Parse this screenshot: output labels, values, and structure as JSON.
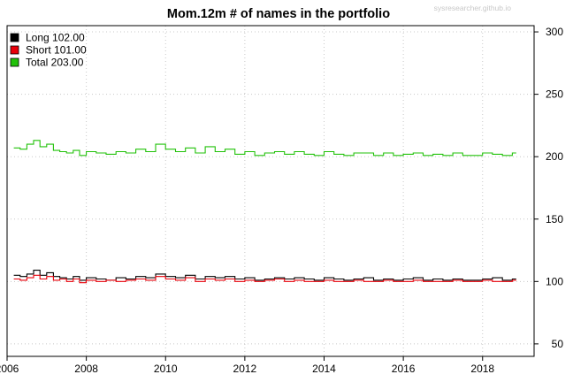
{
  "chart_data": {
    "type": "line",
    "title": "Mom.12m # of names in the portfolio",
    "watermark": "sysresearcher.github.io",
    "xlabel": "",
    "ylabel": "",
    "xlim": [
      2006.0,
      2019.3
    ],
    "ylim": [
      40,
      305
    ],
    "x_ticks": [
      2006,
      2008,
      2010,
      2012,
      2014,
      2016,
      2018
    ],
    "y_ticks": [
      50,
      100,
      150,
      200,
      250,
      300
    ],
    "y_axis_side": "right",
    "grid": true,
    "legend_position": "top-left",
    "step": true,
    "series": [
      {
        "name": "Long 102.00",
        "color": "#000000",
        "x": [
          2006.17,
          2006.33,
          2006.5,
          2006.67,
          2006.83,
          2007.0,
          2007.17,
          2007.33,
          2007.5,
          2007.67,
          2007.83,
          2008.0,
          2008.25,
          2008.5,
          2008.75,
          2009.0,
          2009.25,
          2009.5,
          2009.75,
          2010.0,
          2010.25,
          2010.5,
          2010.75,
          2011.0,
          2011.25,
          2011.5,
          2011.75,
          2012.0,
          2012.25,
          2012.5,
          2012.75,
          2013.0,
          2013.25,
          2013.5,
          2013.75,
          2014.0,
          2014.25,
          2014.5,
          2014.75,
          2015.0,
          2015.25,
          2015.5,
          2015.75,
          2016.0,
          2016.25,
          2016.5,
          2016.75,
          2017.0,
          2017.25,
          2017.5,
          2017.75,
          2018.0,
          2018.25,
          2018.5,
          2018.75
        ],
        "values": [
          105,
          104,
          106,
          109,
          105,
          107,
          104,
          103,
          102,
          104,
          101,
          103,
          102,
          101,
          103,
          102,
          104,
          103,
          106,
          104,
          103,
          105,
          102,
          104,
          103,
          104,
          102,
          103,
          101,
          102,
          103,
          102,
          103,
          102,
          101,
          103,
          102,
          101,
          102,
          103,
          101,
          102,
          101,
          102,
          103,
          101,
          102,
          101,
          102,
          101,
          101,
          102,
          103,
          101,
          102
        ]
      },
      {
        "name": "Short 101.00",
        "color": "#e8000a",
        "x": [
          2006.17,
          2006.33,
          2006.5,
          2006.67,
          2006.83,
          2007.0,
          2007.17,
          2007.33,
          2007.5,
          2007.67,
          2007.83,
          2008.0,
          2008.25,
          2008.5,
          2008.75,
          2009.0,
          2009.25,
          2009.5,
          2009.75,
          2010.0,
          2010.25,
          2010.5,
          2010.75,
          2011.0,
          2011.25,
          2011.5,
          2011.75,
          2012.0,
          2012.25,
          2012.5,
          2012.75,
          2013.0,
          2013.25,
          2013.5,
          2013.75,
          2014.0,
          2014.25,
          2014.5,
          2014.75,
          2015.0,
          2015.25,
          2015.5,
          2015.75,
          2016.0,
          2016.25,
          2016.5,
          2016.75,
          2017.0,
          2017.25,
          2017.5,
          2017.75,
          2018.0,
          2018.25,
          2018.5,
          2018.75
        ],
        "values": [
          102,
          101,
          103,
          105,
          102,
          104,
          101,
          102,
          100,
          102,
          99,
          101,
          100,
          101,
          100,
          101,
          102,
          101,
          104,
          102,
          101,
          103,
          100,
          102,
          101,
          102,
          100,
          101,
          100,
          101,
          102,
          100,
          101,
          100,
          100,
          101,
          100,
          100,
          101,
          100,
          100,
          101,
          100,
          100,
          101,
          100,
          100,
          100,
          101,
          100,
          100,
          101,
          100,
          100,
          101
        ]
      },
      {
        "name": "Total 203.00",
        "color": "#22c20a",
        "x": [
          2006.17,
          2006.33,
          2006.5,
          2006.67,
          2006.83,
          2007.0,
          2007.17,
          2007.33,
          2007.5,
          2007.67,
          2007.83,
          2008.0,
          2008.25,
          2008.5,
          2008.75,
          2009.0,
          2009.25,
          2009.5,
          2009.75,
          2010.0,
          2010.25,
          2010.5,
          2010.75,
          2011.0,
          2011.25,
          2011.5,
          2011.75,
          2012.0,
          2012.25,
          2012.5,
          2012.75,
          2013.0,
          2013.25,
          2013.5,
          2013.75,
          2014.0,
          2014.25,
          2014.5,
          2014.75,
          2015.0,
          2015.25,
          2015.5,
          2015.75,
          2016.0,
          2016.25,
          2016.5,
          2016.75,
          2017.0,
          2017.25,
          2017.5,
          2017.75,
          2018.0,
          2018.25,
          2018.5,
          2018.75
        ],
        "values": [
          207,
          206,
          210,
          213,
          208,
          210,
          205,
          204,
          203,
          205,
          201,
          204,
          203,
          202,
          204,
          203,
          206,
          204,
          210,
          206,
          204,
          207,
          203,
          208,
          204,
          206,
          202,
          204,
          201,
          203,
          204,
          202,
          204,
          202,
          201,
          204,
          202,
          201,
          203,
          203,
          201,
          203,
          201,
          202,
          203,
          201,
          202,
          201,
          203,
          201,
          201,
          203,
          202,
          201,
          203
        ]
      }
    ]
  }
}
